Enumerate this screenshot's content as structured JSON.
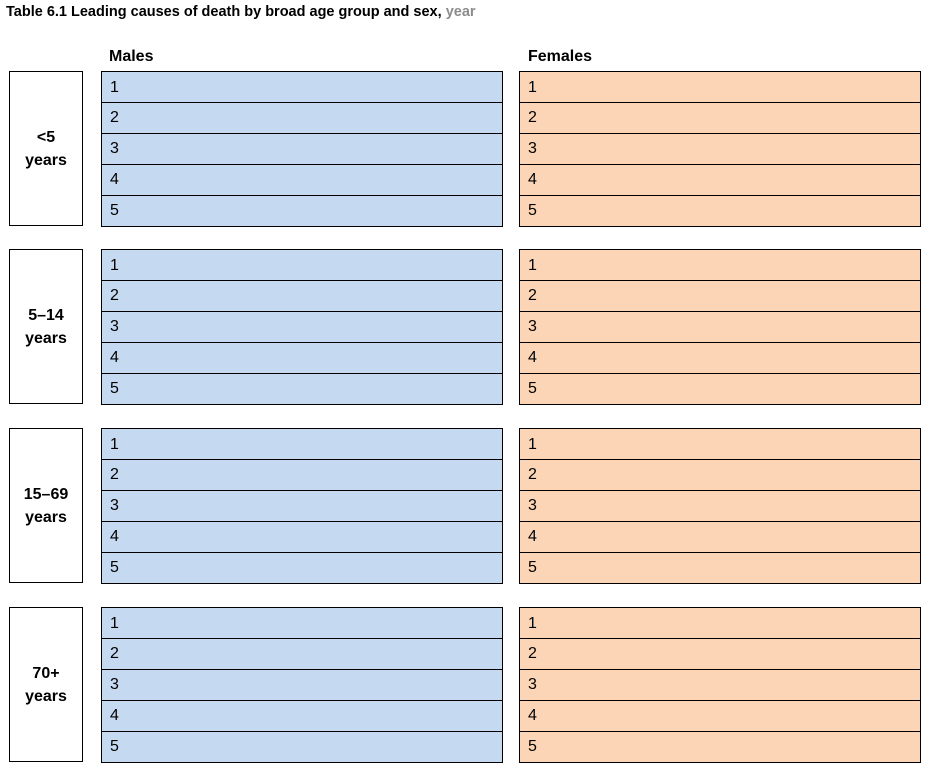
{
  "title": {
    "main": "Table 6.1 Leading causes of death by broad age group and sex, ",
    "year": "year"
  },
  "columns": {
    "males": "Males",
    "females": "Females"
  },
  "groups": [
    {
      "line1": "<5",
      "line2": "years",
      "ranks": [
        "1",
        "2",
        "3",
        "4",
        "5"
      ]
    },
    {
      "line1": "5–14",
      "line2": "years",
      "ranks": [
        "1",
        "2",
        "3",
        "4",
        "5"
      ]
    },
    {
      "line1": "15–69",
      "line2": "years",
      "ranks": [
        "1",
        "2",
        "3",
        "4",
        "5"
      ]
    },
    {
      "line1": "70+",
      "line2": "years",
      "ranks": [
        "1",
        "2",
        "3",
        "4",
        "5"
      ]
    }
  ],
  "colors": {
    "males_fill": "#c5d9f1",
    "females_fill": "#fbd5b5",
    "title_year": "#8c8c8c"
  }
}
